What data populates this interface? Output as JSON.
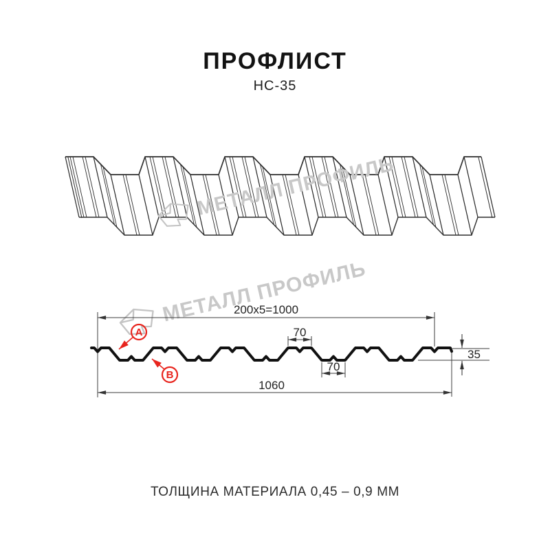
{
  "header": {
    "title": "ПРОФЛИСТ",
    "subtitle": "НС-35"
  },
  "watermark": {
    "text": "МЕТАЛЛ ПРОФИЛЬ"
  },
  "drawing": {
    "coverage_width": "200x5=1000",
    "total_width": "1060",
    "top_rib_width": "70",
    "bottom_rib_width": "70",
    "profile_height": "35",
    "label_a": "A",
    "label_b": "B"
  },
  "footer": {
    "thickness_note": "ТОЛЩИНА МАТЕРИАЛА 0,45 – 0,9 ММ"
  },
  "colors": {
    "accent_red": "#e8241d",
    "line_dark": "#2d2d2d",
    "watermark_gray": "#c8c8c8"
  }
}
